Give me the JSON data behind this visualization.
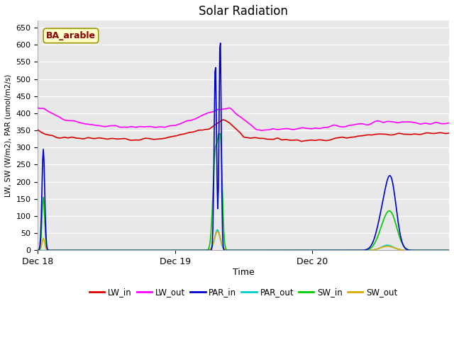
{
  "title": "Solar Radiation",
  "ylabel": "LW, SW (W/m2), PAR (umol/m2/s)",
  "xlabel": "Time",
  "ylim": [
    0,
    670
  ],
  "yticks": [
    0,
    50,
    100,
    150,
    200,
    250,
    300,
    350,
    400,
    450,
    500,
    550,
    600,
    650
  ],
  "xtick_labels": [
    "Dec 18",
    "Dec 19",
    "Dec 20"
  ],
  "fig_bg_color": "#ffffff",
  "plot_bg_color": "#e8e8e8",
  "annotation_text": "BA_arable",
  "annotation_bg": "#ffffcc",
  "annotation_edge": "#999900",
  "annotation_text_color": "#8b0000",
  "colors": {
    "LW_in": "#dd0000",
    "LW_out": "#ff00ff",
    "PAR_in": "#0000cc",
    "PAR_out": "#00cccc",
    "SW_in": "#00cc00",
    "SW_out": "#ddaa00"
  },
  "n_points": 600
}
